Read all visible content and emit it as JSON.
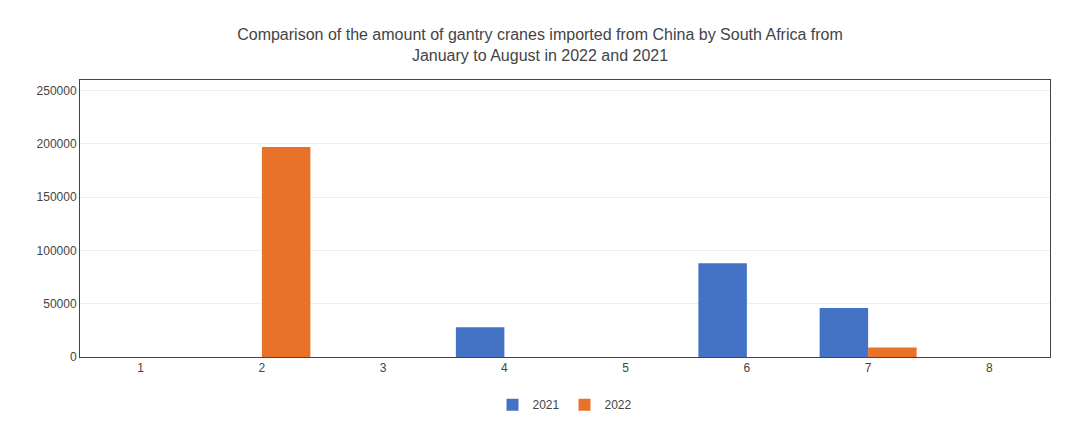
{
  "chart_data": {
    "type": "bar",
    "title": "Comparison of the amount of gantry cranes imported from China by South Africa from\nJanuary to August in 2022 and 2021",
    "categories": [
      "1",
      "2",
      "3",
      "4",
      "5",
      "6",
      "7",
      "8"
    ],
    "series": [
      {
        "name": "2021",
        "color": "#4472c4",
        "values": [
          0,
          0,
          0,
          28000,
          0,
          88000,
          46000,
          0
        ]
      },
      {
        "name": "2022",
        "color": "#e8722a",
        "values": [
          0,
          197000,
          0,
          0,
          0,
          0,
          9000,
          0
        ]
      }
    ],
    "ylim": [
      0,
      260000
    ],
    "yticks": [
      0,
      50000,
      100000,
      150000,
      200000,
      250000
    ],
    "grid": true,
    "legend": "bottom"
  }
}
